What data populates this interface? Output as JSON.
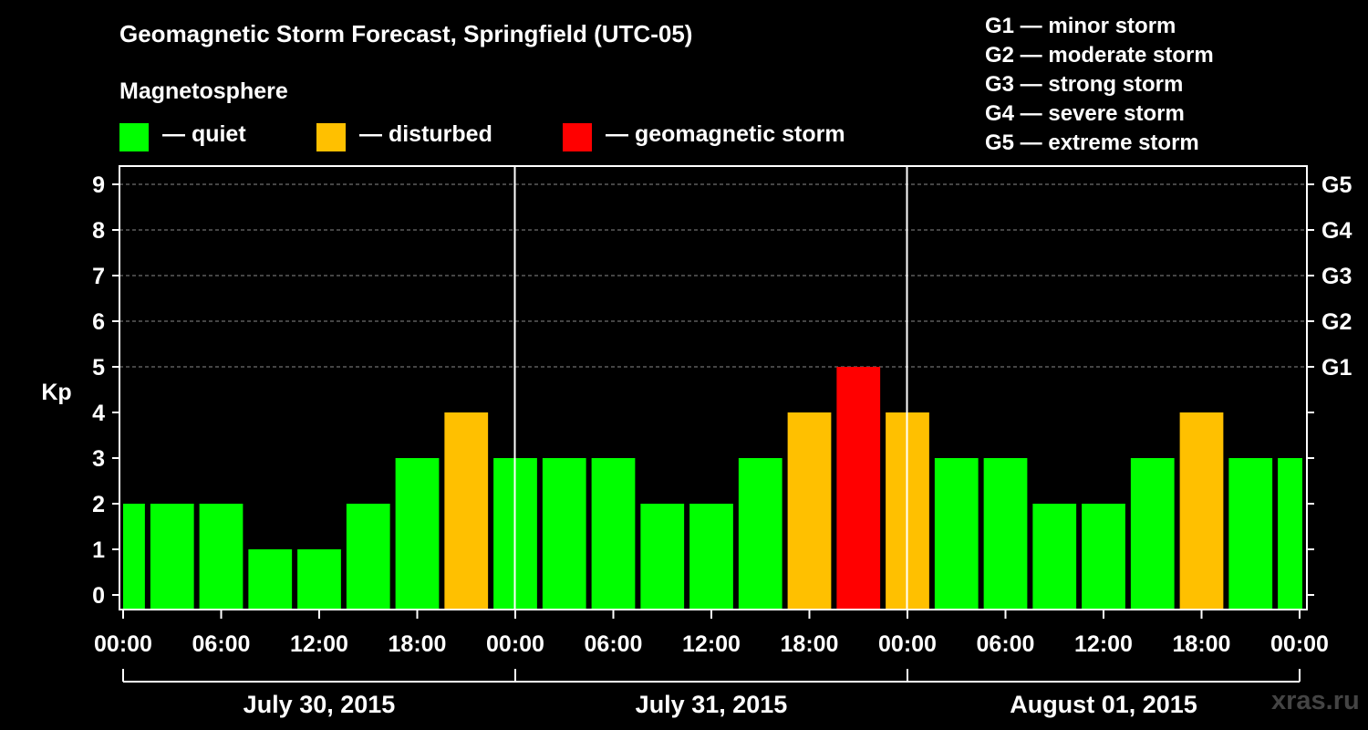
{
  "title": "Geomagnetic Storm Forecast, Springfield (UTC-05)",
  "legend": {
    "heading": "Magnetosphere",
    "items": [
      {
        "label": "— quiet",
        "color": "#00ff00"
      },
      {
        "label": "— disturbed",
        "color": "#ffc000"
      },
      {
        "label": "— geomagnetic storm",
        "color": "#ff0000"
      }
    ]
  },
  "g_scale": [
    "G1 — minor storm",
    "G2 — moderate storm",
    "G3 — strong storm",
    "G4 — severe storm",
    "G5 — extreme storm"
  ],
  "watermark": "xras.ru",
  "chart_data": {
    "type": "bar",
    "ylabel": "Kp",
    "ylim": [
      0,
      9
    ],
    "yticks": [
      "0",
      "1",
      "2",
      "3",
      "4",
      "5",
      "6",
      "7",
      "8",
      "9"
    ],
    "right_axis_labels": [
      {
        "kp": 5,
        "label": "G1"
      },
      {
        "kp": 6,
        "label": "G2"
      },
      {
        "kp": 7,
        "label": "G3"
      },
      {
        "kp": 8,
        "label": "G4"
      },
      {
        "kp": 9,
        "label": "G5"
      }
    ],
    "xticks": [
      "00:00",
      "06:00",
      "12:00",
      "18:00",
      "00:00",
      "06:00",
      "12:00",
      "18:00",
      "00:00",
      "06:00",
      "12:00",
      "18:00",
      "00:00"
    ],
    "days": [
      "July 30, 2015",
      "July 31, 2015",
      "August 01, 2015"
    ],
    "interval_hours": 3,
    "values": [
      2,
      2,
      2,
      1,
      1,
      2,
      3,
      4,
      3,
      3,
      3,
      2,
      2,
      3,
      4,
      5,
      4,
      3,
      3,
      2,
      2,
      3,
      4,
      3,
      3
    ],
    "colors": {
      "quiet": "#00ff00",
      "disturbed": "#ffc000",
      "storm": "#ff0000"
    },
    "grid": true,
    "legend_position": "top"
  }
}
